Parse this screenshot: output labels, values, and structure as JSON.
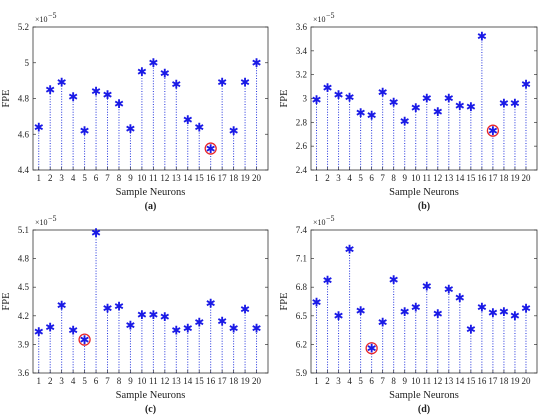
{
  "colors": {
    "stem": "#2233dd",
    "marker": "#1a1ae6",
    "highlight": "#e8262b",
    "axes": "#333333"
  },
  "chart_data": [
    {
      "type": "scatter",
      "panel_label": "(a)",
      "xlabel": "Sample Neurons",
      "ylabel": "FPE",
      "y_multiplier": "×10",
      "y_exponent": "−5",
      "x": [
        1,
        2,
        3,
        4,
        5,
        6,
        7,
        8,
        9,
        10,
        11,
        12,
        13,
        14,
        15,
        16,
        17,
        18,
        19,
        20
      ],
      "values": [
        4.64,
        4.85,
        4.89,
        4.81,
        4.62,
        4.84,
        4.82,
        4.77,
        4.63,
        4.95,
        5.0,
        4.94,
        4.88,
        4.68,
        4.64,
        4.52,
        4.89,
        4.62,
        4.89,
        5.0
      ],
      "highlight_index": 16,
      "ylim": [
        4.4,
        5.2
      ],
      "yticks": [
        "4.4",
        "4.6",
        "4.8",
        "5",
        "5.2"
      ],
      "stem_baseline": 4.4
    },
    {
      "type": "scatter",
      "panel_label": "(b)",
      "xlabel": "Sample Neurons",
      "ylabel": "FPE",
      "y_multiplier": "×10",
      "y_exponent": "−5",
      "x": [
        1,
        2,
        3,
        4,
        5,
        6,
        7,
        8,
        9,
        10,
        11,
        12,
        13,
        14,
        15,
        16,
        17,
        18,
        19,
        20
      ],
      "values": [
        2.99,
        3.09,
        3.03,
        3.01,
        2.88,
        2.86,
        3.05,
        2.97,
        2.81,
        2.92,
        3.0,
        2.89,
        3.0,
        2.94,
        2.93,
        3.52,
        2.73,
        2.96,
        2.96,
        3.12
      ],
      "highlight_index": 17,
      "ylim": [
        2.4,
        3.6
      ],
      "yticks": [
        "2.4",
        "2.6",
        "2.8",
        "3",
        "3.2",
        "3.4",
        "3.6"
      ],
      "stem_baseline": 2.4
    },
    {
      "type": "scatter",
      "panel_label": "(c)",
      "xlabel": "Sample Neurons",
      "ylabel": "FPE",
      "y_multiplier": "×10",
      "y_exponent": "−5",
      "x": [
        1,
        2,
        3,
        4,
        5,
        6,
        7,
        8,
        9,
        10,
        11,
        12,
        13,
        14,
        15,
        16,
        17,
        18,
        19,
        20
      ],
      "values": [
        4.03,
        4.08,
        4.31,
        4.05,
        3.95,
        5.07,
        4.28,
        4.3,
        4.1,
        4.21,
        4.21,
        4.19,
        4.05,
        4.07,
        4.13,
        4.33,
        4.14,
        4.07,
        4.27,
        4.07
      ],
      "highlight_index": 5,
      "ylim": [
        3.6,
        5.1
      ],
      "yticks": [
        "3.6",
        "3.9",
        "4.2",
        "4.5",
        "4.8",
        "5.1"
      ],
      "stem_baseline": 3.6
    },
    {
      "type": "scatter",
      "panel_label": "(d)",
      "xlabel": "Sample Neurons",
      "ylabel": "FPE",
      "y_multiplier": "×10",
      "y_exponent": "−5",
      "x": [
        1,
        2,
        3,
        4,
        5,
        6,
        7,
        8,
        9,
        10,
        11,
        12,
        13,
        14,
        15,
        16,
        17,
        18,
        19,
        20
      ],
      "values": [
        6.64,
        6.87,
        6.5,
        7.2,
        6.55,
        6.16,
        6.43,
        6.88,
        6.54,
        6.59,
        6.81,
        6.52,
        6.78,
        6.69,
        6.36,
        6.59,
        6.53,
        6.54,
        6.5,
        6.58
      ],
      "highlight_index": 6,
      "ylim": [
        5.9,
        7.4
      ],
      "yticks": [
        "5.9",
        "6.2",
        "6.5",
        "6.8",
        "7.1",
        "7.4"
      ],
      "stem_baseline": 5.9
    }
  ]
}
